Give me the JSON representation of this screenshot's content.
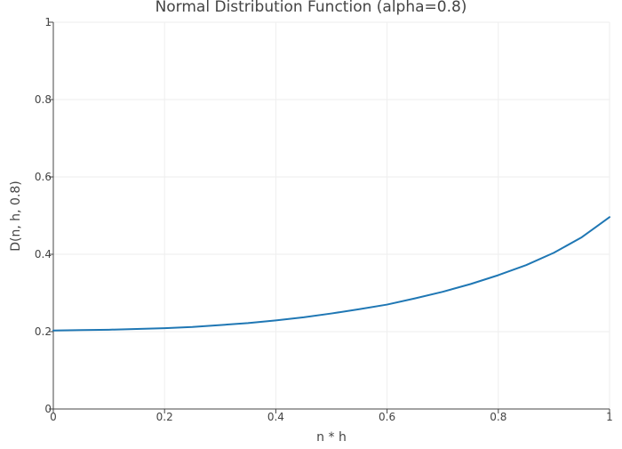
{
  "chart_data": {
    "type": "line",
    "title": "Normal Distribution Function (alpha=0.8)",
    "xlabel": "n * h",
    "ylabel": "D(n, h, 0.8)",
    "xlim": [
      0,
      1
    ],
    "ylim": [
      0,
      1
    ],
    "x_ticks": [
      0,
      0.2,
      0.4,
      0.6,
      0.8,
      1
    ],
    "x_tick_labels": [
      "0",
      "0.2",
      "0.4",
      "0.6",
      "0.8",
      "1"
    ],
    "y_ticks": [
      0,
      0.2,
      0.4,
      0.6,
      0.8,
      1
    ],
    "y_tick_labels": [
      "0",
      "0.2",
      "0.4",
      "0.6",
      "0.8",
      "1"
    ],
    "grid": true,
    "legend": "none",
    "series": [
      {
        "color": "#1f77b4",
        "x": [
          0,
          0.05,
          0.1,
          0.15,
          0.2,
          0.25,
          0.3,
          0.35,
          0.4,
          0.45,
          0.5,
          0.55,
          0.6,
          0.65,
          0.7,
          0.75,
          0.8,
          0.85,
          0.9,
          0.95,
          1.0
        ],
        "y": [
          0.203,
          0.204,
          0.205,
          0.207,
          0.209,
          0.212,
          0.217,
          0.222,
          0.229,
          0.237,
          0.247,
          0.258,
          0.27,
          0.286,
          0.303,
          0.323,
          0.346,
          0.372,
          0.404,
          0.444,
          0.496
        ]
      }
    ]
  }
}
